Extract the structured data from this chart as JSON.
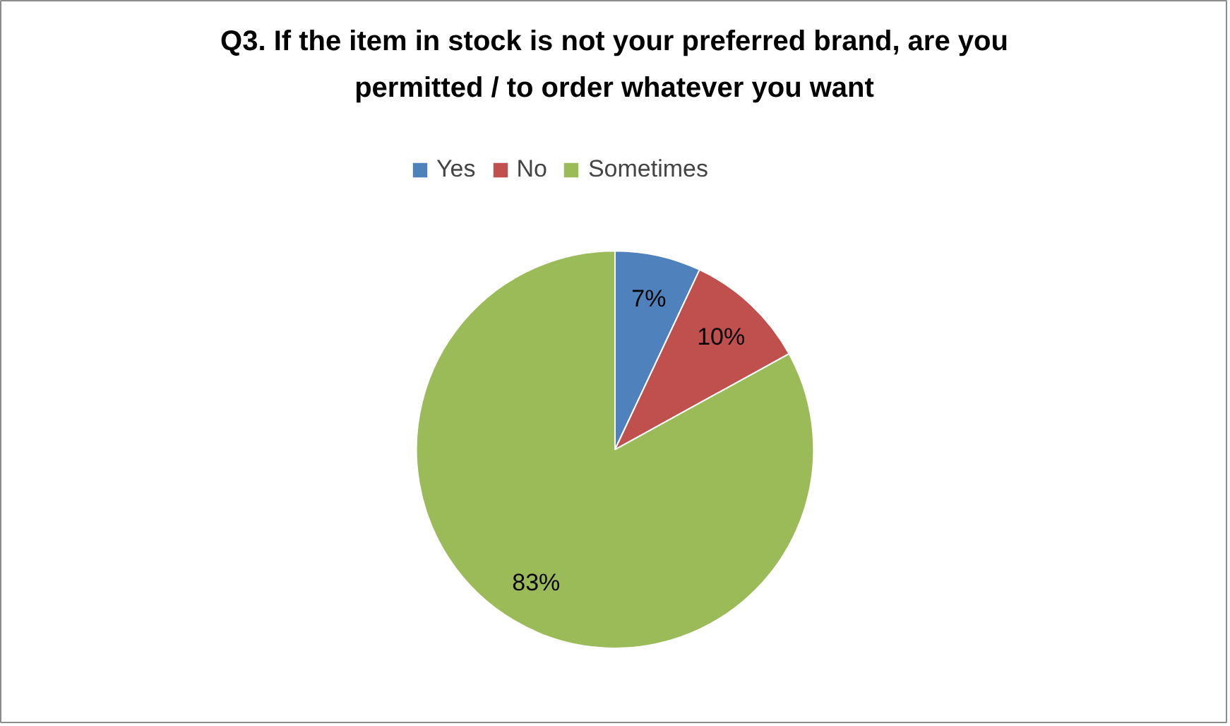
{
  "chart_data": {
    "type": "pie",
    "title": "Q3. If the item in stock is not your preferred brand, are you permitted / to order whatever you want",
    "categories": [
      "Yes",
      "No",
      "Sometimes"
    ],
    "values": [
      7,
      10,
      83
    ],
    "colors": [
      "#4f81bd",
      "#c0504d",
      "#9bbb59"
    ],
    "value_labels": [
      "7%",
      "10%",
      "83%"
    ],
    "legend": "top"
  }
}
